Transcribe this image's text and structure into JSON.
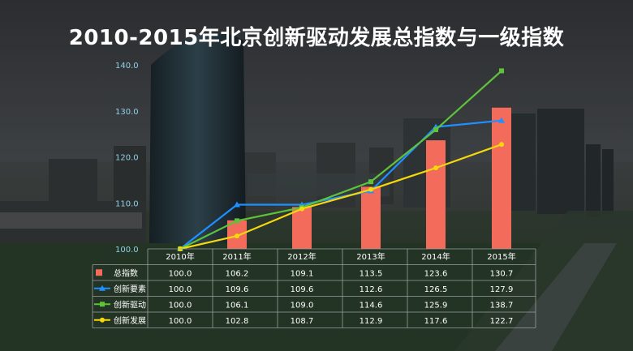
{
  "title": "2010-2015年北京创新驱动发展总指数与一级指数",
  "chart_data": {
    "type": "bar",
    "title": "2010-2015年北京创新驱动发展总指数与一级指数",
    "categories": [
      "2010年",
      "2011年",
      "2012年",
      "2013年",
      "2014年",
      "2015年"
    ],
    "ylim": [
      100,
      140
    ],
    "yticks": [
      "100.0",
      "110.0",
      "120.0",
      "130.0",
      "140.0"
    ],
    "grid": false,
    "legend": "data-table-left",
    "series": [
      {
        "name": "总指数",
        "type": "bar",
        "color": "#f26b5b",
        "values": [
          100.0,
          106.2,
          109.1,
          113.5,
          123.6,
          130.7
        ]
      },
      {
        "name": "创新要素",
        "type": "line",
        "color": "#1e90ff",
        "marker": "triangle",
        "values": [
          100.0,
          109.6,
          109.6,
          112.6,
          126.5,
          127.9
        ]
      },
      {
        "name": "创新驱动",
        "type": "line",
        "color": "#5ec33b",
        "marker": "square",
        "values": [
          100.0,
          106.1,
          109.0,
          114.6,
          125.9,
          138.7
        ]
      },
      {
        "name": "创新发展",
        "type": "line",
        "color": "#f5d90a",
        "marker": "circle",
        "values": [
          100.0,
          102.8,
          108.7,
          112.9,
          117.6,
          122.7
        ]
      }
    ],
    "table": {
      "rows": [
        [
          "100.0",
          "106.2",
          "109.1",
          "113.5",
          "123.6",
          "130.7"
        ],
        [
          "100.0",
          "109.6",
          "109.6",
          "112.6",
          "126.5",
          "127.9"
        ],
        [
          "100.0",
          "106.1",
          "109.0",
          "114.6",
          "125.9",
          "138.7"
        ],
        [
          "100.0",
          "102.8",
          "108.7",
          "112.9",
          "117.6",
          "122.7"
        ]
      ]
    }
  }
}
